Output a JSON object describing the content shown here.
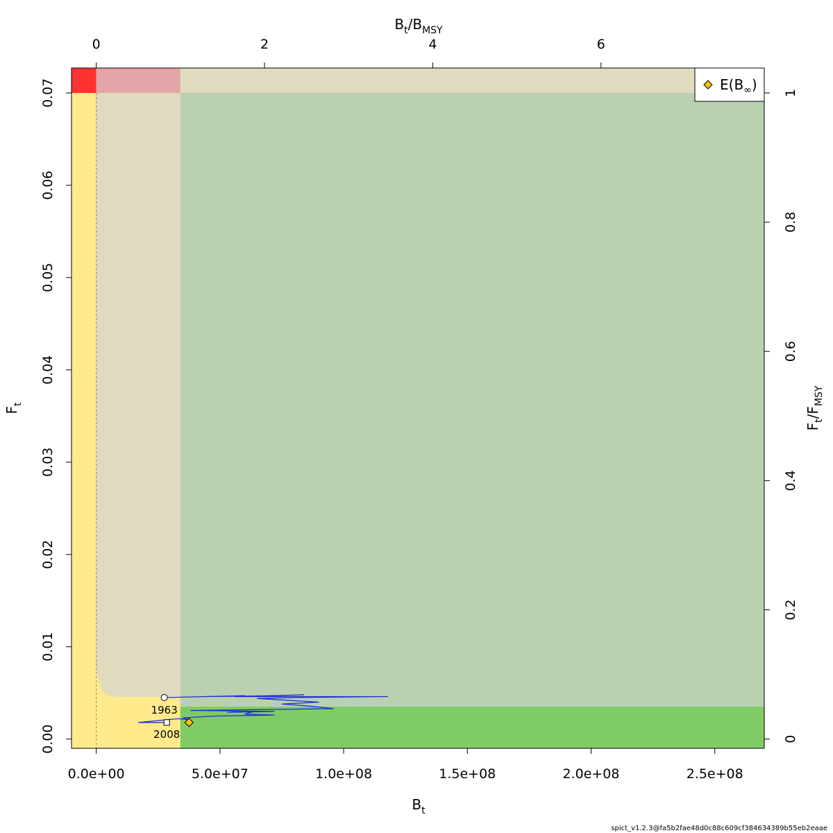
{
  "chart_data": {
    "type": "line",
    "x_axis_bottom": {
      "label": "B",
      "label_sub": "t",
      "range": [
        -10000000,
        270000000
      ],
      "ticks": [
        0,
        50000000,
        100000000,
        150000000,
        200000000,
        250000000
      ],
      "tick_labels": [
        "0.0e+00",
        "5.0e+07",
        "1.0e+08",
        "1.5e+08",
        "2.0e+08",
        "2.5e+08"
      ]
    },
    "x_axis_top": {
      "label_num": "B",
      "label_num_sub": "t",
      "label_slash": "/",
      "label_den": "B",
      "label_den_sub": "MSY",
      "ticks": [
        0,
        2,
        4,
        6
      ],
      "tick_labels": [
        "0",
        "2",
        "4",
        "6"
      ]
    },
    "y_axis_left": {
      "label": "F",
      "label_sub": "t",
      "range": [
        -0.001,
        0.0727
      ],
      "ticks": [
        0.0,
        0.01,
        0.02,
        0.03,
        0.04,
        0.05,
        0.06,
        0.07
      ],
      "tick_labels": [
        "0.00",
        "0.01",
        "0.02",
        "0.03",
        "0.04",
        "0.05",
        "0.06",
        "0.07"
      ]
    },
    "y_axis_right": {
      "label_num": "F",
      "label_num_sub": "t",
      "label_slash": "/",
      "label_den": "F",
      "label_den_sub": "MSY",
      "ticks": [
        0,
        0.2,
        0.4,
        0.6,
        0.8,
        1
      ],
      "tick_labels": [
        "0",
        "0.2",
        "0.4",
        "0.6",
        "0.8",
        "1"
      ]
    },
    "reference_points": {
      "Bmsy": 34000000,
      "Fmsy": 0.07
    },
    "zone_colors": {
      "yellow": "#ffea8c",
      "red": "#ff3232",
      "pink": "#e3a5a5",
      "tan": "#e0dbbf",
      "light_green": "#bad1b1",
      "green": "#7fcc67"
    },
    "trajectory": {
      "color": "#1f2fd6",
      "points": [
        [
          27500000,
          0.0045
        ],
        [
          60000000,
          0.0047
        ],
        [
          45000000,
          0.0046
        ],
        [
          72000000,
          0.0047
        ],
        [
          84000000,
          0.0048
        ],
        [
          56000000,
          0.0046
        ],
        [
          118000000,
          0.0046
        ],
        [
          80000000,
          0.0045
        ],
        [
          65000000,
          0.0044
        ],
        [
          90000000,
          0.004
        ],
        [
          75000000,
          0.0038
        ],
        [
          85000000,
          0.0036
        ],
        [
          96000000,
          0.0033
        ],
        [
          38000000,
          0.0031
        ],
        [
          72000000,
          0.003
        ],
        [
          53000000,
          0.0029
        ],
        [
          64000000,
          0.003
        ],
        [
          60000000,
          0.0027
        ],
        [
          72000000,
          0.0026
        ],
        [
          48000000,
          0.0025
        ],
        [
          35000000,
          0.0023
        ],
        [
          38000000,
          0.0021
        ],
        [
          33000000,
          0.0022
        ],
        [
          17000000,
          0.0018
        ],
        [
          28500000,
          0.0018
        ]
      ]
    },
    "markers": {
      "start": {
        "x": 27500000,
        "y": 0.0045,
        "label": "1963"
      },
      "end": {
        "x": 28500000,
        "y": 0.0018,
        "label": "2008"
      },
      "equilibrium": {
        "x": 37500000,
        "y": 0.0018,
        "color": "#f5c400"
      }
    },
    "legend": {
      "placement": "top-right",
      "entry_text": "E(B",
      "entry_sub": "∞",
      "entry_close": ")"
    }
  },
  "footer": "spict_v1.2.3@fa5b2fae48d0c88c609cf384634389b55eb2eaae"
}
